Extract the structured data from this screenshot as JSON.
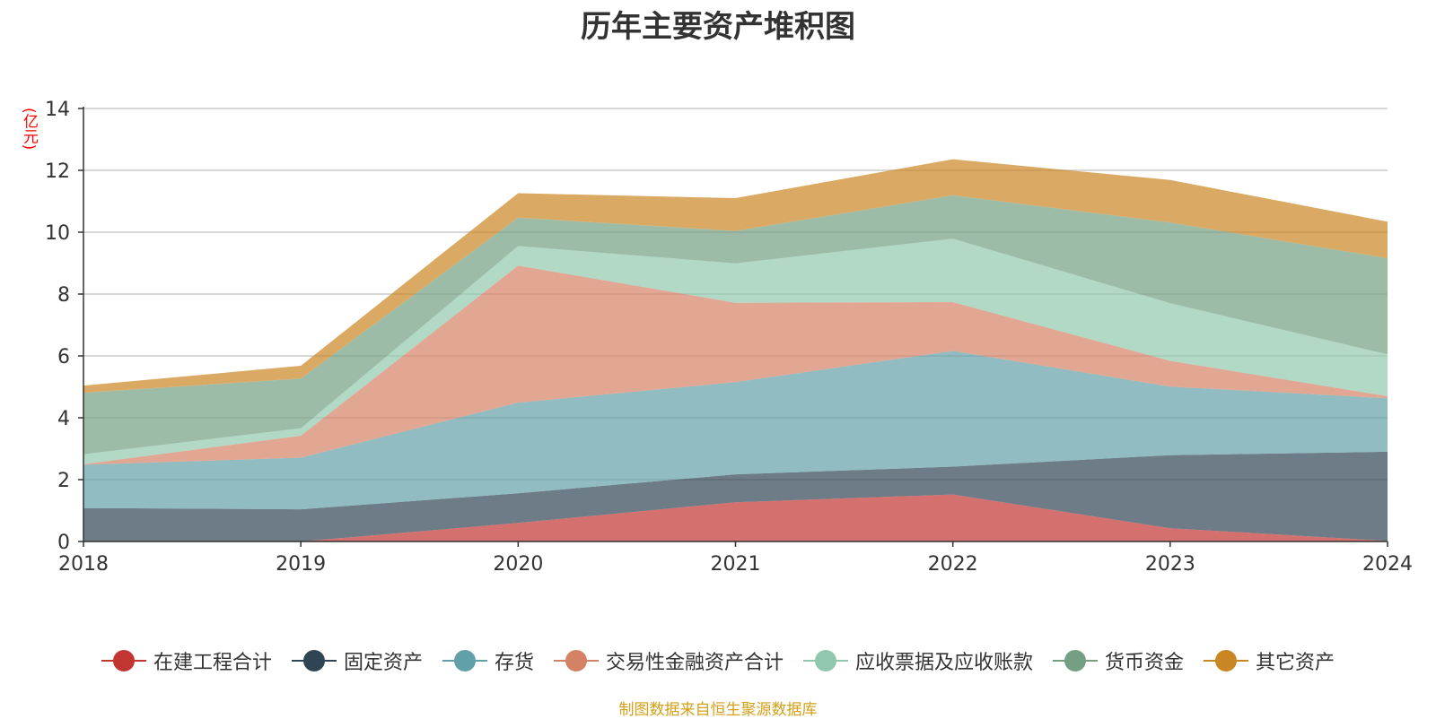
{
  "chart_data": {
    "type": "area",
    "stacked": true,
    "title": "历年主要资产堆积图",
    "ylabel": "(亿元)",
    "xlabel": "",
    "categories": [
      "2018",
      "2019",
      "2020",
      "2021",
      "2022",
      "2023",
      "2024"
    ],
    "ylim": [
      0,
      14
    ],
    "yticks": [
      0,
      2,
      4,
      6,
      8,
      10,
      12,
      14
    ],
    "grid": true,
    "legend_position": "bottom",
    "series": [
      {
        "name": "在建工程合计",
        "color": "#c23531",
        "values": [
          0,
          0,
          0.6,
          1.27,
          1.52,
          0.43,
          0.02
        ]
      },
      {
        "name": "固定资产",
        "color": "#2f4554",
        "values": [
          1.08,
          1.04,
          0.96,
          0.9,
          0.9,
          2.36,
          2.88
        ]
      },
      {
        "name": "存货",
        "color": "#61a0a8",
        "values": [
          1.4,
          1.67,
          2.93,
          2.98,
          3.74,
          2.22,
          1.73
        ]
      },
      {
        "name": "交易性金融资产合计",
        "color": "#d48265",
        "values": [
          0.02,
          0.71,
          4.43,
          2.57,
          1.58,
          0.83,
          0.07
        ]
      },
      {
        "name": "应收票据及应收账款",
        "color": "#91c7ae",
        "values": [
          0.32,
          0.24,
          0.63,
          1.27,
          2.05,
          1.86,
          1.35
        ]
      },
      {
        "name": "货币资金",
        "color": "#749f83",
        "values": [
          1.99,
          1.61,
          0.92,
          1.05,
          1.4,
          2.61,
          3.11
        ]
      },
      {
        "name": "其它资产",
        "color": "#ca8622",
        "values": [
          0.23,
          0.41,
          0.79,
          1.06,
          1.17,
          1.38,
          1.18
        ]
      }
    ]
  },
  "source_note": "制图数据来自恒生聚源数据库"
}
